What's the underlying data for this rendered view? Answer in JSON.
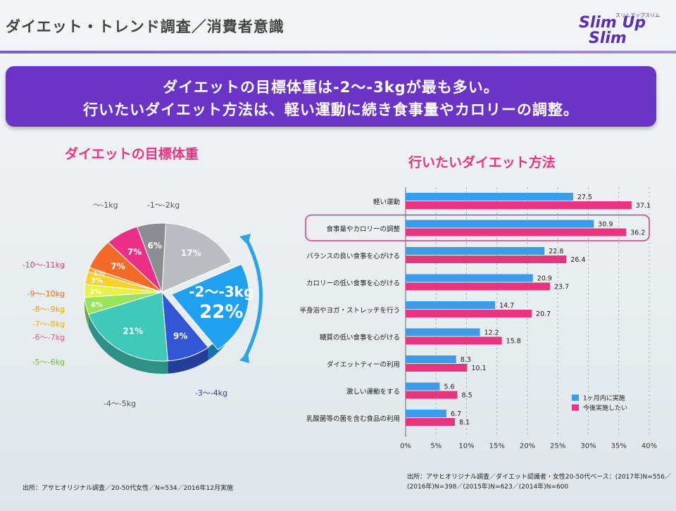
{
  "header": {
    "title": "ダイエット・トレンド調査／消費者意識",
    "logo_line1": "Slim Up",
    "logo_line2": "Slim",
    "logo_sub": "スリムアップスリム"
  },
  "banner": {
    "line1": "ダイエットの目標体重は-2〜-3kgが最も多い。",
    "line2": "行いたいダイエット方法は、軽い運動に続き食事量やカロリーの調整。"
  },
  "colors": {
    "accent_pink": "#e8347e",
    "banner_purple": "#6a35c6",
    "bar_blue": "#3d9be9",
    "bar_pink": "#e8347e"
  },
  "chart_data": [
    {
      "type": "pie",
      "title": "ダイエットの目標体重",
      "slices": [
        {
          "label": "-2〜-3kg",
          "value": 22,
          "display": "22%",
          "color": "#1fa0f0"
        },
        {
          "label": "-3〜-4kg",
          "value": 9,
          "display": "9%",
          "color": "#3356d6"
        },
        {
          "label": "-4〜-5kg",
          "value": 21,
          "display": "21%",
          "color": "#3ec9b9"
        },
        {
          "label": "-5〜-6kg",
          "value": 4,
          "display": "4%",
          "color": "#9ae35c"
        },
        {
          "label": "-6〜-7kg",
          "value": 3,
          "display": "3%",
          "color": "#e8f04a"
        },
        {
          "label": "-7〜-8kg",
          "value": 3,
          "display": "3%",
          "color": "#f7d22e"
        },
        {
          "label": "-8〜-9kg",
          "value": 1,
          "display": "1%",
          "color": "#f7a62a"
        },
        {
          "label": "-9〜-10kg",
          "value": 7,
          "display": "7%",
          "color": "#f46a28"
        },
        {
          "label": "-10〜-11kg",
          "value": 7,
          "display": "7%",
          "color": "#ec2f86"
        },
        {
          "label": "〜-1kg",
          "value": 6,
          "display": "6%",
          "color": "#8a8d91"
        },
        {
          "label": "-1〜-2kg",
          "value": 17,
          "display": "17%",
          "color": "#b9bcc0"
        }
      ],
      "highlight": {
        "label": "-2〜-3kg",
        "value": "22%"
      },
      "source": "出所：アサヒオリジナル調査／20-50代女性／N=534／2016年12月実施"
    },
    {
      "type": "bar",
      "orientation": "horizontal",
      "title": "行いたいダイエット方法",
      "categories": [
        "軽い運動",
        "食事量やカロリーの調整",
        "バランスの良い食事を心がける",
        "カロリーの低い食事を心がける",
        "半身浴やヨガ・ストレッチを行う",
        "糖質の低い食事を心がける",
        "ダイエットティーの利用",
        "激しい運動をする",
        "乳酸菌等の菌を含む食品の利用"
      ],
      "series": [
        {
          "name": "1ヶ月内に実施",
          "values": [
            27.5,
            30.9,
            22.8,
            20.9,
            14.7,
            12.2,
            8.3,
            5.6,
            6.7
          ],
          "color": "#3d9be9"
        },
        {
          "name": "今後実施したい",
          "values": [
            37.1,
            36.2,
            26.4,
            23.7,
            20.7,
            15.8,
            10.1,
            8.5,
            8.1
          ],
          "color": "#e8347e"
        }
      ],
      "xlim": [
        0,
        40
      ],
      "xticks": [
        "0%",
        "5%",
        "10%",
        "15%",
        "20%",
        "25%",
        "30%",
        "35%",
        "40%"
      ],
      "grid": true,
      "legend": "bottom-right",
      "highlight_category": "食事量やカロリーの調整",
      "source_line1": "出所：アサヒオリジナル調査／ダイエット認識者・女性20-50代ベース：(2017年)N=556／",
      "source_line2": "(2016年)N=398／(2015年)N=623／(2014年)N=600"
    }
  ]
}
